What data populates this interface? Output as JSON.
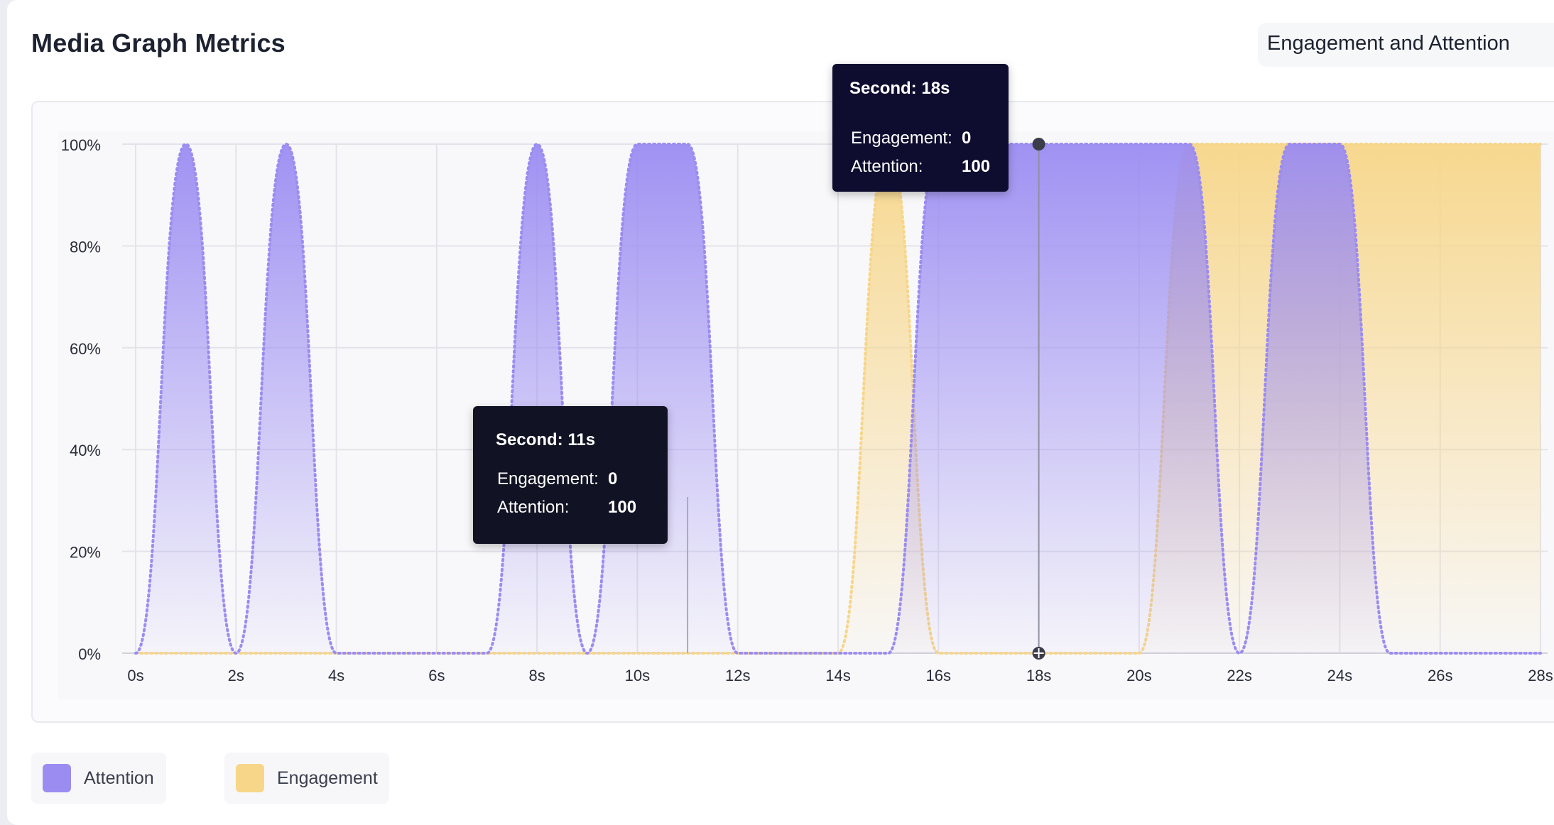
{
  "header": {
    "title": "Media Graph Metrics",
    "metric_selector": "Engagement and Attention"
  },
  "colors": {
    "attention": "#9b8cf2",
    "engagement": "#f7d689",
    "tooltip_bg": "#111324",
    "grid": "#e3e3ea"
  },
  "chart_data": {
    "type": "area",
    "x": [
      0,
      1,
      2,
      3,
      4,
      5,
      6,
      7,
      8,
      9,
      10,
      11,
      12,
      13,
      14,
      15,
      16,
      17,
      18,
      19,
      20,
      21,
      22,
      23,
      24,
      25,
      26,
      27,
      28
    ],
    "xlim": [
      0,
      28
    ],
    "ylim": [
      0,
      100
    ],
    "x_ticks": [
      "0s",
      "2s",
      "4s",
      "6s",
      "8s",
      "10s",
      "12s",
      "14s",
      "16s",
      "18s",
      "20s",
      "22s",
      "24s",
      "26s",
      "28s"
    ],
    "y_ticks": [
      "0%",
      "20%",
      "40%",
      "60%",
      "80%",
      "100%"
    ],
    "series": [
      {
        "name": "Attention",
        "color": "#9b8cf2",
        "values": [
          0,
          100,
          0,
          100,
          0,
          0,
          0,
          0,
          100,
          0,
          100,
          100,
          0,
          0,
          0,
          0,
          100,
          100,
          100,
          100,
          100,
          100,
          0,
          100,
          100,
          0,
          0,
          0,
          0
        ]
      },
      {
        "name": "Engagement",
        "color": "#f7d689",
        "values": [
          0,
          0,
          0,
          0,
          0,
          0,
          0,
          0,
          0,
          0,
          0,
          0,
          0,
          0,
          0,
          100,
          0,
          0,
          0,
          0,
          0,
          100,
          100,
          100,
          100,
          100,
          100,
          100,
          100
        ]
      }
    ],
    "grid": true,
    "legend_position": "bottom-left",
    "hover_marker_x": 18,
    "tooltips": [
      {
        "title": "Second: 11s",
        "engagement_label": "Engagement:",
        "engagement_value": "0",
        "attention_label": "Attention:",
        "attention_value": "100"
      },
      {
        "title": "Second: 18s",
        "engagement_label": "Engagement:",
        "engagement_value": "0",
        "attention_label": "Attention:",
        "attention_value": "100"
      }
    ]
  },
  "legend": [
    {
      "label": "Attention",
      "color": "#9b8cf2"
    },
    {
      "label": "Engagement",
      "color": "#f7d689"
    }
  ]
}
